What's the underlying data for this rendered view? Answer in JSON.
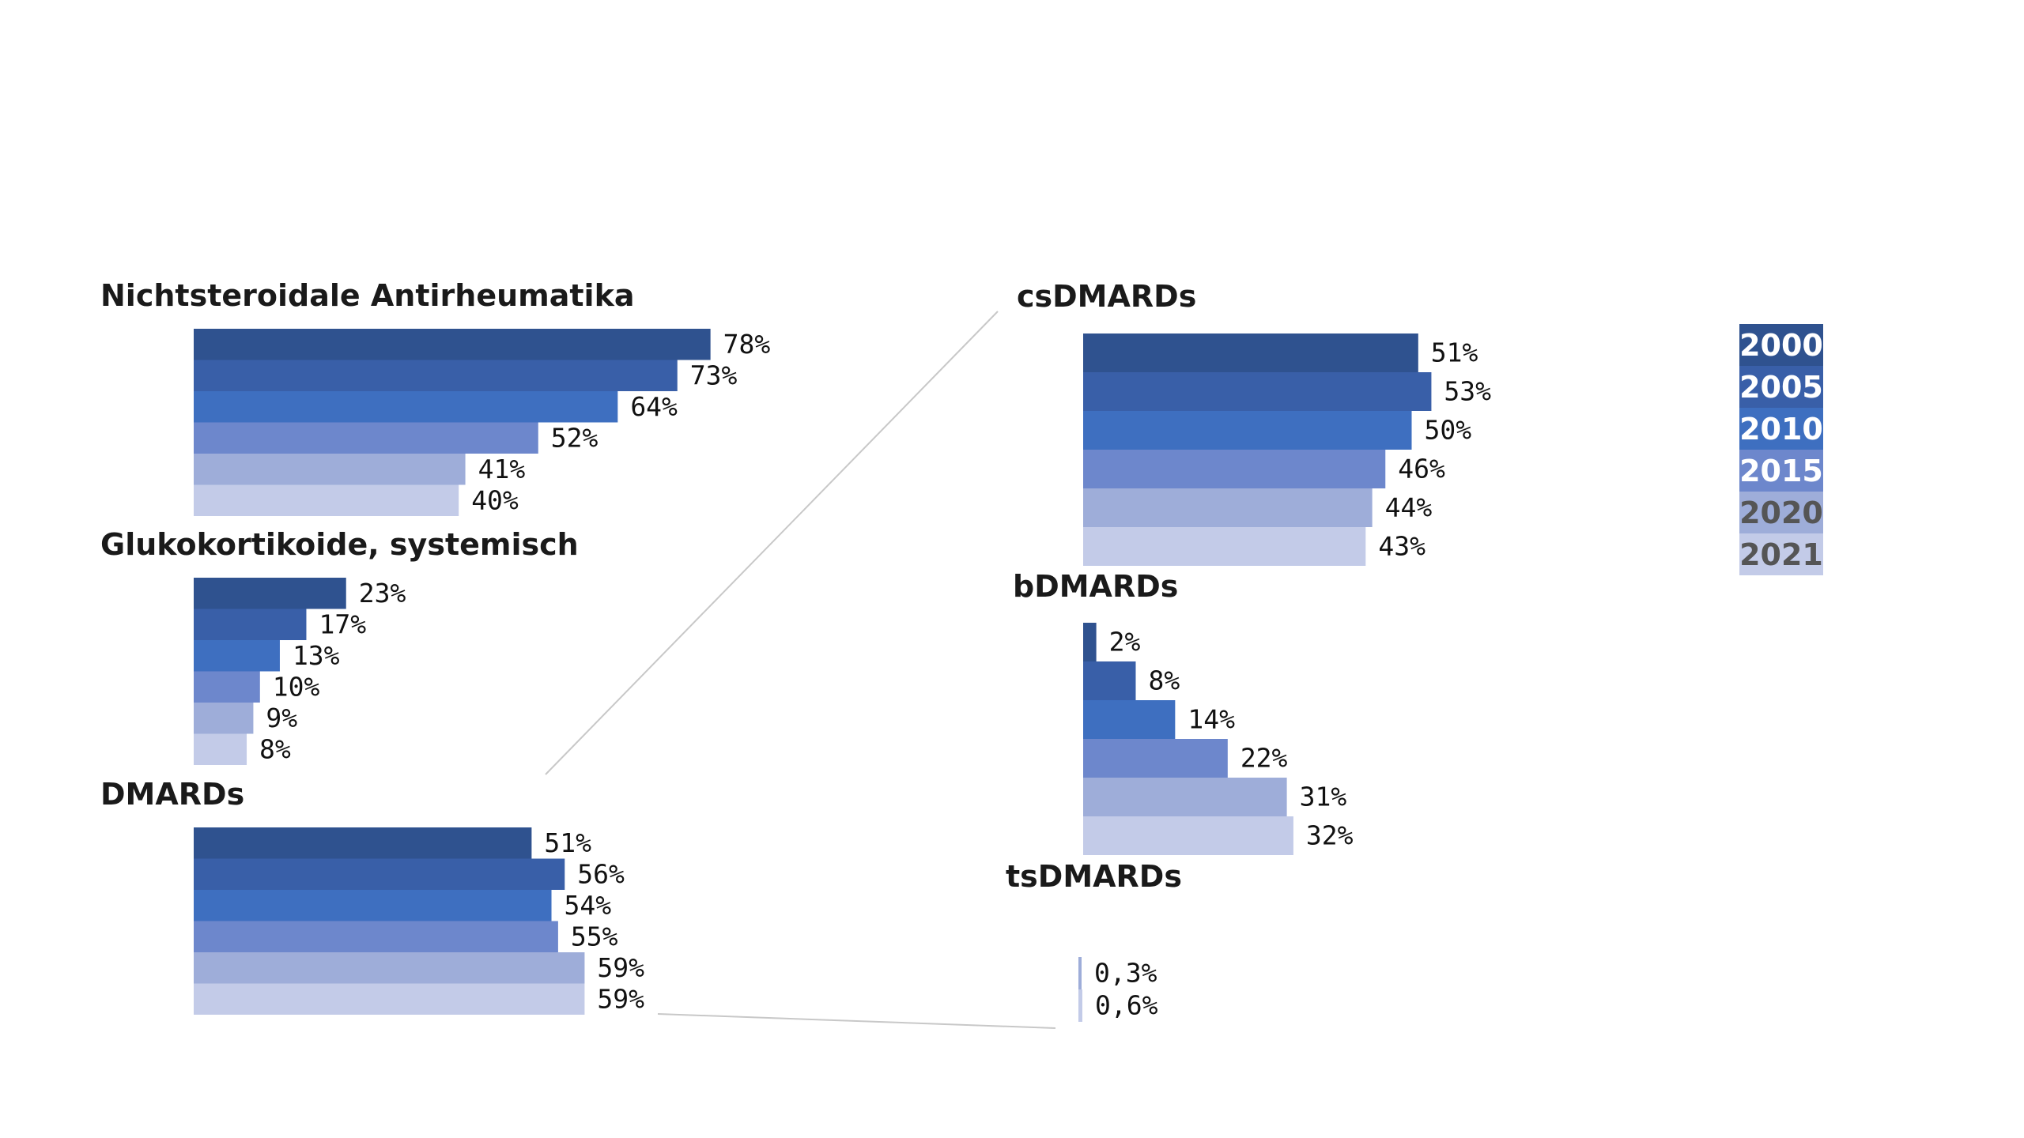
{
  "chart_data": [
    {
      "type": "bar",
      "orientation": "horizontal",
      "title": "Nichtsteroidale Antirheumatika",
      "categories": [
        "2000",
        "2005",
        "2010",
        "2015",
        "2020",
        "2021"
      ],
      "values": [
        78,
        73,
        64,
        52,
        41,
        40
      ],
      "labels": [
        "78%",
        "73%",
        "64%",
        "52%",
        "41%",
        "40%"
      ],
      "unit": "%"
    },
    {
      "type": "bar",
      "orientation": "horizontal",
      "title": "Glukokortikoide, systemisch",
      "categories": [
        "2000",
        "2005",
        "2010",
        "2015",
        "2020",
        "2021"
      ],
      "values": [
        23,
        17,
        13,
        10,
        9,
        8
      ],
      "labels": [
        "23%",
        "17%",
        "13%",
        "10%",
        "9%",
        "8%"
      ],
      "unit": "%"
    },
    {
      "type": "bar",
      "orientation": "horizontal",
      "title": "DMARDs",
      "categories": [
        "2000",
        "2005",
        "2010",
        "2015",
        "2020",
        "2021"
      ],
      "values": [
        51,
        56,
        54,
        55,
        59,
        59
      ],
      "labels": [
        "51%",
        "56%",
        "54%",
        "55%",
        "59%",
        "59%"
      ],
      "unit": "%"
    },
    {
      "type": "bar",
      "orientation": "horizontal",
      "title": "csDMARDs",
      "categories": [
        "2000",
        "2005",
        "2010",
        "2015",
        "2020",
        "2021"
      ],
      "values": [
        51,
        53,
        50,
        46,
        44,
        43
      ],
      "labels": [
        "51%",
        "53%",
        "50%",
        "46%",
        "44%",
        "43%"
      ],
      "unit": "%"
    },
    {
      "type": "bar",
      "orientation": "horizontal",
      "title": "bDMARDs",
      "categories": [
        "2000",
        "2005",
        "2010",
        "2015",
        "2020",
        "2021"
      ],
      "values": [
        2,
        8,
        14,
        22,
        31,
        32
      ],
      "labels": [
        "2%",
        "8%",
        "14%",
        "22%",
        "31%",
        "32%"
      ],
      "unit": "%"
    },
    {
      "type": "bar",
      "orientation": "horizontal",
      "title": "tsDMARDs",
      "categories": [
        "2020",
        "2021"
      ],
      "values": [
        0.3,
        0.6
      ],
      "labels": [
        "0,3%",
        "0,6%"
      ],
      "unit": "%"
    }
  ],
  "legend": {
    "placement": "right",
    "items": [
      {
        "label": "2000",
        "color": "#2f528f",
        "text_color": "#ffffff"
      },
      {
        "label": "2005",
        "color": "#395fa8",
        "text_color": "#ffffff"
      },
      {
        "label": "2010",
        "color": "#3e6fc0",
        "text_color": "#ffffff"
      },
      {
        "label": "2015",
        "color": "#6d87cc",
        "text_color": "#ffffff"
      },
      {
        "label": "2020",
        "color": "#9eadd9",
        "text_color": "#555555"
      },
      {
        "label": "2021",
        "color": "#c3cbe8",
        "text_color": "#555555"
      }
    ]
  },
  "colors": {
    "2000": "#2f528f",
    "2005": "#395fa8",
    "2010": "#3e6fc0",
    "2015": "#6d87cc",
    "2020": "#9eadd9",
    "2021": "#c3cbe8"
  }
}
